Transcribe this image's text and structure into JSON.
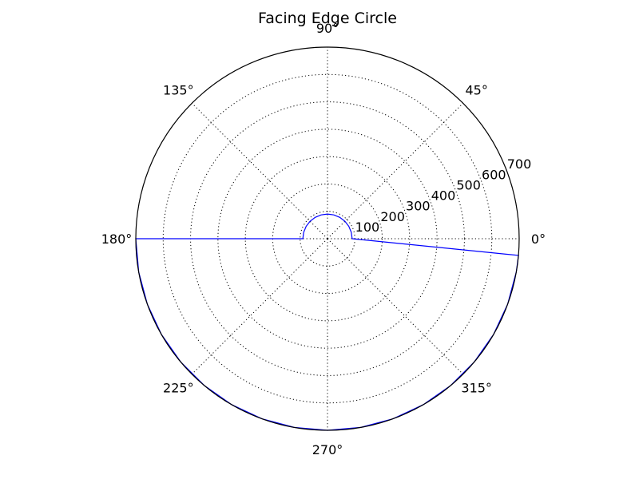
{
  "chart_data": {
    "type": "line",
    "projection": "polar",
    "title": "Facing Edge Circle",
    "r_max": 700,
    "r_ticks": [
      100,
      200,
      300,
      400,
      500,
      600,
      700
    ],
    "theta_ticks": [
      0,
      45,
      90,
      135,
      180,
      225,
      270,
      315
    ],
    "theta_tick_labels": [
      "0°",
      "45°",
      "90°",
      "135°",
      "180°",
      "225°",
      "270°",
      "315°"
    ],
    "grid": true,
    "series": [
      {
        "color": "#0000ff",
        "theta_deg": [
          0,
          15,
          30,
          45,
          60,
          75,
          90,
          105,
          120,
          135,
          150,
          165,
          180,
          180,
          190,
          200,
          210,
          220,
          230,
          240,
          250,
          260,
          270,
          280,
          290,
          300,
          310,
          320,
          330,
          340,
          350,
          355,
          360
        ],
        "r": [
          90,
          90,
          90,
          90,
          90,
          90,
          90,
          90,
          90,
          90,
          90,
          90,
          90,
          700,
          700,
          700,
          700,
          700,
          700,
          700,
          700,
          700,
          700,
          700,
          700,
          700,
          700,
          700,
          700,
          700,
          700,
          700,
          90
        ]
      }
    ]
  }
}
